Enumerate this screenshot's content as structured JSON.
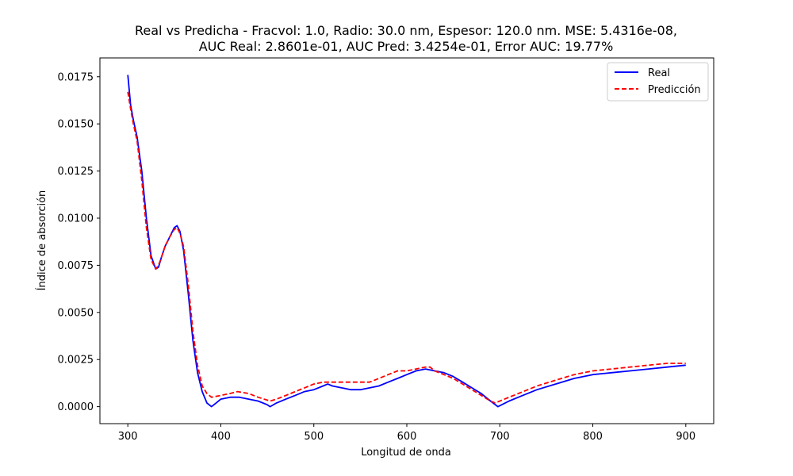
{
  "chart_data": {
    "type": "line",
    "title_line1": "Real vs Predicha - Fracvol: 1.0, Radio: 30.0 nm, Espesor: 120.0 nm. MSE: 5.4316e-08,",
    "title_line2": "AUC Real: 2.8601e-01, AUC Pred: 3.4254e-01, Error AUC: 19.77%",
    "xlabel": "Longitud de onda",
    "ylabel": "Índice de absorción",
    "xlim": [
      270,
      930
    ],
    "ylim": [
      -0.0009,
      0.0185
    ],
    "xticks": [
      300,
      400,
      500,
      600,
      700,
      800,
      900
    ],
    "xtick_labels": [
      "300",
      "400",
      "500",
      "600",
      "700",
      "800",
      "900"
    ],
    "yticks": [
      0.0,
      0.0025,
      0.005,
      0.0075,
      0.01,
      0.0125,
      0.015,
      0.0175
    ],
    "ytick_labels": [
      "0.0000",
      "0.0025",
      "0.0050",
      "0.0075",
      "0.0100",
      "0.0125",
      "0.0150",
      "0.0175"
    ],
    "grid": false,
    "legend_position": "top-right",
    "series": [
      {
        "name": "Real",
        "color": "#0000ff",
        "style": "solid",
        "x": [
          300,
          303,
          306,
          310,
          315,
          320,
          325,
          330,
          333,
          336,
          340,
          345,
          350,
          353,
          356,
          360,
          365,
          370,
          375,
          380,
          385,
          390,
          395,
          400,
          410,
          420,
          430,
          440,
          450,
          453,
          460,
          470,
          480,
          490,
          500,
          510,
          515,
          520,
          530,
          540,
          550,
          560,
          570,
          580,
          590,
          600,
          610,
          620,
          630,
          640,
          650,
          660,
          670,
          680,
          690,
          698,
          710,
          720,
          740,
          760,
          780,
          800,
          820,
          840,
          860,
          880,
          900
        ],
        "y": [
          0.0176,
          0.016,
          0.0152,
          0.0143,
          0.0125,
          0.01,
          0.008,
          0.0073,
          0.0074,
          0.0079,
          0.0085,
          0.009,
          0.0095,
          0.0096,
          0.0093,
          0.0083,
          0.006,
          0.0035,
          0.0018,
          0.0008,
          0.0002,
          0.0,
          0.0002,
          0.0004,
          0.0005,
          0.0005,
          0.0004,
          0.0003,
          0.0001,
          0.0,
          0.0002,
          0.0004,
          0.0006,
          0.0008,
          0.0009,
          0.0011,
          0.0012,
          0.0011,
          0.001,
          0.0009,
          0.0009,
          0.001,
          0.0011,
          0.0013,
          0.0015,
          0.0017,
          0.0019,
          0.002,
          0.0019,
          0.0018,
          0.0016,
          0.0013,
          0.001,
          0.0007,
          0.0003,
          0.0,
          0.0003,
          0.0005,
          0.0009,
          0.0012,
          0.0015,
          0.0017,
          0.0018,
          0.0019,
          0.002,
          0.0021,
          0.0022
        ]
      },
      {
        "name": "Predicción",
        "color": "#ff0000",
        "style": "dashed",
        "x": [
          300,
          303,
          306,
          310,
          315,
          320,
          325,
          330,
          333,
          336,
          340,
          345,
          350,
          353,
          356,
          360,
          365,
          370,
          375,
          380,
          385,
          390,
          400,
          410,
          418,
          430,
          440,
          453,
          460,
          470,
          480,
          490,
          500,
          510,
          520,
          530,
          540,
          550,
          560,
          570,
          580,
          590,
          600,
          610,
          620,
          625,
          630,
          640,
          650,
          660,
          670,
          680,
          690,
          695,
          710,
          720,
          740,
          760,
          780,
          800,
          820,
          840,
          860,
          880,
          900
        ],
        "y": [
          0.0167,
          0.0158,
          0.015,
          0.0141,
          0.012,
          0.0095,
          0.0078,
          0.0073,
          0.0075,
          0.0079,
          0.0085,
          0.009,
          0.0094,
          0.0095,
          0.0092,
          0.0085,
          0.0065,
          0.004,
          0.0022,
          0.0011,
          0.0007,
          0.0005,
          0.0006,
          0.0007,
          0.0008,
          0.0007,
          0.0005,
          0.0003,
          0.0004,
          0.0006,
          0.0008,
          0.001,
          0.0012,
          0.0013,
          0.0013,
          0.0013,
          0.0013,
          0.0013,
          0.0013,
          0.0015,
          0.0017,
          0.0019,
          0.0019,
          0.002,
          0.0021,
          0.0021,
          0.0019,
          0.0017,
          0.0015,
          0.0012,
          0.0009,
          0.0006,
          0.0003,
          0.0002,
          0.0005,
          0.0007,
          0.0011,
          0.0014,
          0.0017,
          0.0019,
          0.002,
          0.0021,
          0.0022,
          0.0023,
          0.0023
        ]
      }
    ]
  }
}
